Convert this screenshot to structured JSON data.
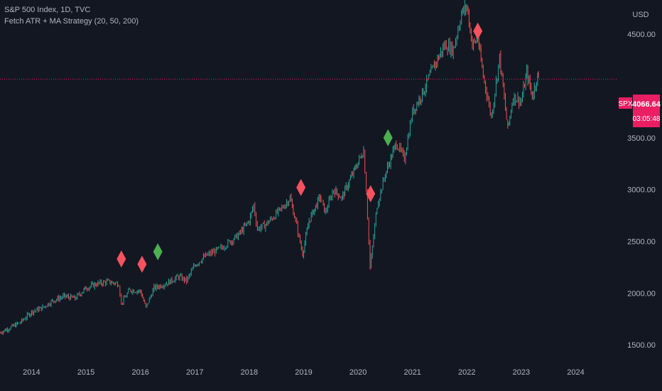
{
  "header": {
    "symbol_line": "S&P 500 Index, 1D, TVC",
    "indicator_line": "Fetch ATR + MA Strategy (20, 50, 200)",
    "currency": "USD"
  },
  "price_tag": {
    "symbol": "SPX",
    "price": "4066.64",
    "countdown": "03:05:48"
  },
  "colors": {
    "background": "#131722",
    "up": "#26a69a",
    "down": "#ef5350",
    "price_line": "#e91e63",
    "sell_marker": "#f7525f",
    "buy_marker": "#4caf50"
  },
  "chart_data": {
    "type": "line",
    "title": "S&P 500 Index, 1D, TVC",
    "x_ticks": [
      "2014",
      "2015",
      "2016",
      "2017",
      "2018",
      "2019",
      "2020",
      "2021",
      "2022",
      "2023",
      "2024"
    ],
    "y_ticks": [
      "4500.00",
      "3500.00",
      "3000.00",
      "2500.00",
      "2000.00",
      "1500.00"
    ],
    "ylim": [
      1330,
      4830
    ],
    "xlim": [
      2013.42,
      2024.75
    ],
    "series": [
      {
        "values": [
          [
            2013.42,
            1620
          ],
          [
            2013.6,
            1665
          ],
          [
            2013.8,
            1720
          ],
          [
            2014.0,
            1820
          ],
          [
            2014.2,
            1860
          ],
          [
            2014.4,
            1930
          ],
          [
            2014.6,
            1970
          ],
          [
            2014.8,
            1950
          ],
          [
            2015.0,
            2050
          ],
          [
            2015.2,
            2090
          ],
          [
            2015.4,
            2110
          ],
          [
            2015.6,
            2090
          ],
          [
            2015.65,
            1900
          ],
          [
            2015.8,
            2030
          ],
          [
            2016.0,
            2020
          ],
          [
            2016.1,
            1860
          ],
          [
            2016.25,
            2050
          ],
          [
            2016.5,
            2100
          ],
          [
            2016.7,
            2160
          ],
          [
            2016.85,
            2120
          ],
          [
            2017.0,
            2270
          ],
          [
            2017.2,
            2360
          ],
          [
            2017.5,
            2440
          ],
          [
            2017.8,
            2560
          ],
          [
            2018.0,
            2700
          ],
          [
            2018.08,
            2850
          ],
          [
            2018.15,
            2620
          ],
          [
            2018.3,
            2660
          ],
          [
            2018.6,
            2820
          ],
          [
            2018.75,
            2920
          ],
          [
            2018.85,
            2700
          ],
          [
            2018.98,
            2380
          ],
          [
            2019.1,
            2700
          ],
          [
            2019.3,
            2930
          ],
          [
            2019.4,
            2780
          ],
          [
            2019.55,
            3000
          ],
          [
            2019.7,
            2920
          ],
          [
            2019.9,
            3150
          ],
          [
            2020.1,
            3380
          ],
          [
            2020.15,
            3000
          ],
          [
            2020.22,
            2240
          ],
          [
            2020.35,
            2850
          ],
          [
            2020.5,
            3150
          ],
          [
            2020.7,
            3450
          ],
          [
            2020.85,
            3300
          ],
          [
            2021.0,
            3750
          ],
          [
            2021.2,
            3950
          ],
          [
            2021.4,
            4200
          ],
          [
            2021.6,
            4400
          ],
          [
            2021.75,
            4350
          ],
          [
            2021.9,
            4700
          ],
          [
            2022.0,
            4770
          ],
          [
            2022.1,
            4400
          ],
          [
            2022.2,
            4450
          ],
          [
            2022.3,
            4100
          ],
          [
            2022.45,
            3700
          ],
          [
            2022.6,
            4280
          ],
          [
            2022.75,
            3580
          ],
          [
            2022.85,
            3900
          ],
          [
            2023.0,
            3850
          ],
          [
            2023.1,
            4130
          ],
          [
            2023.2,
            3900
          ],
          [
            2023.3,
            4100
          ],
          [
            2023.33,
            4066
          ]
        ]
      }
    ],
    "markers": [
      {
        "x": 2015.65,
        "y": 2330,
        "signal": "sell"
      },
      {
        "x": 2016.03,
        "y": 2280,
        "signal": "sell"
      },
      {
        "x": 2016.32,
        "y": 2400,
        "signal": "buy"
      },
      {
        "x": 2018.95,
        "y": 3020,
        "signal": "sell"
      },
      {
        "x": 2020.23,
        "y": 2960,
        "signal": "sell"
      },
      {
        "x": 2020.55,
        "y": 3500,
        "signal": "buy"
      },
      {
        "x": 2022.2,
        "y": 4530,
        "signal": "sell"
      }
    ],
    "last_price": 4066.64
  }
}
